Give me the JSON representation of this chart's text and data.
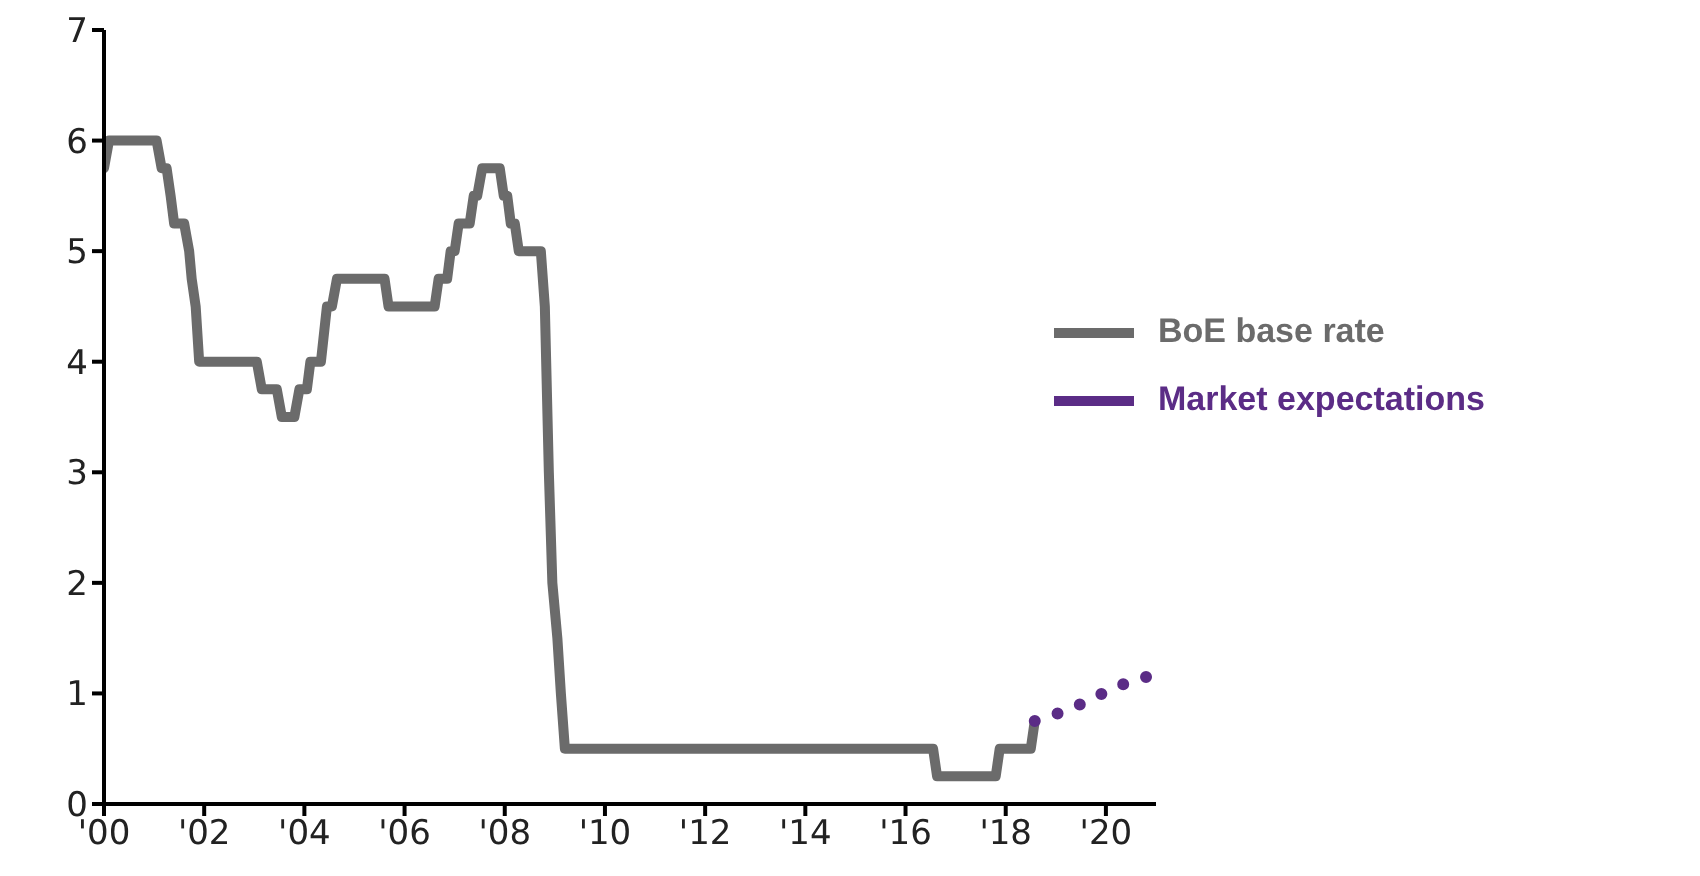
{
  "chart_data": {
    "type": "line",
    "xlim": [
      2000,
      2021
    ],
    "xticks": [
      {
        "value": 2000,
        "label": "'00"
      },
      {
        "value": 2002,
        "label": "'02"
      },
      {
        "value": 2004,
        "label": "'04"
      },
      {
        "value": 2006,
        "label": "'06"
      },
      {
        "value": 2008,
        "label": "'08"
      },
      {
        "value": 2010,
        "label": "'10"
      },
      {
        "value": 2012,
        "label": "'12"
      },
      {
        "value": 2014,
        "label": "'14"
      },
      {
        "value": 2016,
        "label": "'16"
      },
      {
        "value": 2018,
        "label": "'18"
      },
      {
        "value": 2020,
        "label": "'20"
      }
    ],
    "ylim": [
      0,
      7
    ],
    "yticks": [
      0,
      1,
      2,
      3,
      4,
      5,
      6,
      7
    ],
    "grid": false,
    "legend": "right",
    "marker": "none",
    "series": [
      {
        "name": "BoE base rate",
        "color": "#6b6b6b",
        "line_style": "solid",
        "x": [
          2000.0,
          2000.1,
          2001.05,
          2001.15,
          2001.25,
          2001.33,
          2001.4,
          2001.6,
          2001.7,
          2001.75,
          2001.83,
          2001.9,
          2003.05,
          2003.15,
          2003.45,
          2003.55,
          2003.8,
          2003.9,
          2004.05,
          2004.12,
          2004.33,
          2004.45,
          2004.55,
          2004.65,
          2005.6,
          2005.68,
          2006.6,
          2006.68,
          2006.85,
          2006.92,
          2007.0,
          2007.08,
          2007.3,
          2007.38,
          2007.45,
          2007.55,
          2007.9,
          2007.98,
          2008.05,
          2008.12,
          2008.2,
          2008.28,
          2008.72,
          2008.8,
          2008.88,
          2008.95,
          2009.05,
          2009.12,
          2009.2,
          2016.55,
          2016.63,
          2017.8,
          2017.88,
          2018.5,
          2018.58
        ],
        "values": [
          5.75,
          6,
          6,
          5.75,
          5.75,
          5.5,
          5.25,
          5.25,
          5,
          4.75,
          4.5,
          4,
          4,
          3.75,
          3.75,
          3.5,
          3.5,
          3.75,
          3.75,
          4,
          4,
          4.5,
          4.5,
          4.75,
          4.75,
          4.5,
          4.5,
          4.75,
          4.75,
          5,
          5,
          5.25,
          5.25,
          5.5,
          5.5,
          5.75,
          5.75,
          5.5,
          5.5,
          5.25,
          5.25,
          5,
          5,
          4.5,
          3,
          2,
          1.5,
          1,
          0.5,
          0.5,
          0.25,
          0.25,
          0.5,
          0.5,
          0.75
        ]
      },
      {
        "name": "Market expectations",
        "color": "#5b2c86",
        "line_style": "dotted",
        "x": [
          2018.58,
          2018.92,
          2019.24,
          2019.58,
          2019.89,
          2020.21,
          2020.55,
          2020.89
        ],
        "values": [
          0.75,
          0.8,
          0.85,
          0.92,
          0.99,
          1.06,
          1.12,
          1.16
        ]
      }
    ]
  }
}
